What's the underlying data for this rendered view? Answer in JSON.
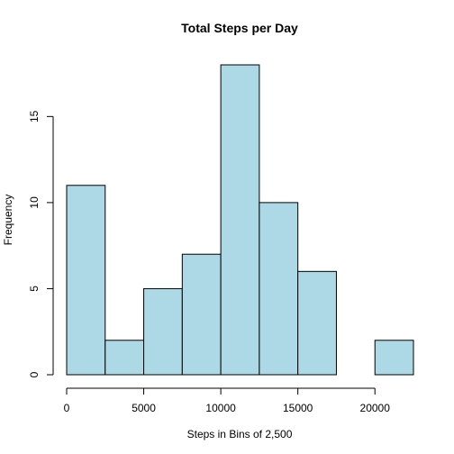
{
  "chart_data": {
    "type": "bar",
    "title": "Total Steps per Day",
    "xlabel": "Steps in Bins of 2,500",
    "ylabel": "Frequency",
    "bin_edges": [
      0,
      2500,
      5000,
      7500,
      10000,
      12500,
      15000,
      17500,
      20000,
      22500
    ],
    "values": [
      11,
      2,
      5,
      7,
      18,
      10,
      6,
      0,
      2
    ],
    "bar_color": "#ADD8E6",
    "xlim": [
      0,
      22500
    ],
    "ylim": [
      0,
      18
    ],
    "x_ticks": [
      0,
      5000,
      10000,
      15000,
      20000
    ],
    "x_tick_labels": [
      "0",
      "5000",
      "10000",
      "15000",
      "20000"
    ],
    "y_ticks": [
      0,
      5,
      10,
      15
    ],
    "y_tick_labels": [
      "0",
      "5",
      "10",
      "15"
    ],
    "grid": false,
    "legend": "none"
  }
}
